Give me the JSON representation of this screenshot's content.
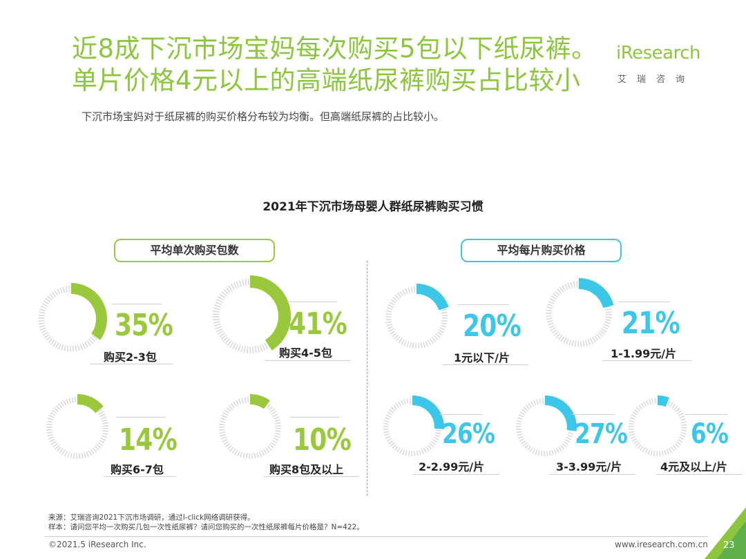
{
  "header": {
    "title_line1": "近8成下沉市场宝妈每次购买5包以下纸尿裤。",
    "title_line2": "单片价格4元以上的高端纸尿裤购买占比较小",
    "subtitle": "下沉市场宝妈对于纸尿裤的购买价格分布较为均衡。但高端纸尿裤的占比较小。"
  },
  "logo": {
    "main": "iResearch",
    "sub": "艾瑞咨询"
  },
  "colors": {
    "green": "#9ac83c",
    "blue": "#3cc6e8",
    "ring": "#d9d9d9"
  },
  "chart_data": {
    "type": "pie",
    "title": "2021年下沉市场母婴人群纸尿裤购买习惯",
    "groups": [
      {
        "name": "平均单次购买包数",
        "color": "#9ac83c",
        "items": [
          {
            "label": "购买2-3包",
            "value": 35,
            "display": "35%"
          },
          {
            "label": "购买4-5包",
            "value": 41,
            "display": "41%"
          },
          {
            "label": "购买6-7包",
            "value": 14,
            "display": "14%"
          },
          {
            "label": "购买8包及以上",
            "value": 10,
            "display": "10%"
          }
        ]
      },
      {
        "name": "平均每片购买价格",
        "color": "#3cc6e8",
        "items": [
          {
            "label": "1元以下/片",
            "value": 20,
            "display": "20%"
          },
          {
            "label": "1-1.99元/片",
            "value": 21,
            "display": "21%"
          },
          {
            "label": "2-2.99元/片",
            "value": 26,
            "display": "26%"
          },
          {
            "label": "3-3.99元/片",
            "value": 27,
            "display": "27%"
          },
          {
            "label": "4元及以上/片",
            "value": 6,
            "display": "6%"
          }
        ]
      }
    ]
  },
  "footer": {
    "source": "来源：艾瑞咨询2021下沉市场调研，通过I-click网络调研获得。",
    "sample": "样本：请问您平均一次购买几包一次性纸尿裤？请问您购买的一次性纸尿裤每片价格是？N=422。",
    "copyright": "©2021.5 iResearch Inc.",
    "website": "www.iresearch.com.cn",
    "page": "23"
  }
}
